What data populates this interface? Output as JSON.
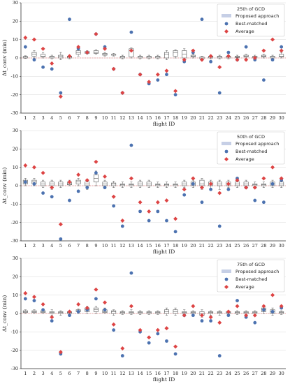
{
  "chart_data": [
    {
      "type": "box+scatter",
      "title": "25th of GCD",
      "xlabel": "flight ID",
      "ylabel": "Δt_conv (min)",
      "ylim": [
        -30,
        30
      ],
      "yticks": [
        -30,
        -20,
        -10,
        0,
        10,
        20,
        30
      ],
      "categories": [
        1,
        2,
        3,
        4,
        5,
        6,
        7,
        8,
        9,
        10,
        11,
        12,
        13,
        14,
        15,
        16,
        17,
        18,
        19,
        20,
        21,
        22,
        23,
        24,
        25,
        26,
        27,
        28,
        29,
        30
      ],
      "legend": {
        "placement": "top-right",
        "entries": [
          "Proposed approach",
          "Best-matched",
          "Average"
        ]
      },
      "series": [
        {
          "name": "Proposed approach",
          "kind": "box",
          "boxes": [
            [
              -0.3,
              0,
              0.5,
              0.8,
              1.2
            ],
            [
              0,
              1,
              2,
              3,
              4
            ],
            [
              0,
              0.5,
              1,
              2,
              3
            ],
            [
              -0.5,
              0,
              0.5,
              1,
              1.5
            ],
            [
              -1,
              0,
              1,
              1.5,
              3
            ],
            [
              -0.5,
              0,
              0.5,
              1,
              1.5
            ],
            [
              1,
              2,
              3,
              4,
              5
            ],
            [
              2,
              2.5,
              3,
              3.5,
              4
            ],
            [
              2,
              2.5,
              3,
              4,
              4.5
            ],
            [
              1,
              1.5,
              2,
              2.5,
              3
            ],
            [
              1,
              1.5,
              2,
              2,
              2.5
            ],
            [
              -0.5,
              0,
              0.5,
              1,
              1.5
            ],
            [
              0,
              0.5,
              4,
              5,
              5.5
            ],
            [
              -0.5,
              0,
              0.5,
              1,
              1.5
            ],
            [
              -0.5,
              0,
              0.5,
              1,
              1.5
            ],
            [
              -0.5,
              0,
              0.5,
              1,
              1.5
            ],
            [
              -1,
              0,
              2,
              3,
              4
            ],
            [
              0,
              1,
              3,
              4,
              4.5
            ],
            [
              -1,
              0,
              2,
              4,
              5
            ],
            [
              0,
              0.5,
              1,
              1.5,
              2
            ],
            [
              -1,
              -0.5,
              0,
              0.5,
              1
            ],
            [
              -0.5,
              0,
              0.5,
              1,
              1.5
            ],
            [
              -0.5,
              0,
              0.5,
              1,
              1.5
            ],
            [
              -0.5,
              0,
              0.5,
              1,
              1.5
            ],
            [
              0,
              0.3,
              0.5,
              1,
              1.5
            ],
            [
              0,
              0.5,
              1,
              1.5,
              2
            ],
            [
              -0.5,
              0,
              0.5,
              1,
              1.5
            ],
            [
              0,
              0.5,
              1,
              1.5,
              2
            ],
            [
              -0.5,
              0,
              0.5,
              1,
              1.5
            ],
            [
              0,
              0.5,
              1,
              2,
              3
            ]
          ]
        },
        {
          "name": "Best-matched",
          "kind": "scatter",
          "marker": "circle",
          "color": "#4c72b0",
          "values": [
            6,
            -1,
            -5,
            -6,
            -19,
            21,
            5,
            3,
            13,
            6,
            -6,
            -19,
            14,
            -9,
            -14,
            -12,
            -9,
            -20,
            -2,
            3,
            21,
            -2,
            -19,
            3,
            -1,
            6,
            -1,
            -12,
            -1,
            6
          ]
        },
        {
          "name": "Average",
          "kind": "scatter",
          "marker": "diamond",
          "color": "#dd4444",
          "values": [
            11,
            10,
            5,
            -3,
            -21,
            1,
            6,
            3,
            13,
            5,
            -6,
            -19,
            4,
            -9,
            -13,
            -9,
            -7,
            -18,
            -1,
            4,
            -1,
            1,
            -5,
            1,
            -1,
            -1,
            0,
            4,
            10,
            4
          ]
        }
      ]
    },
    {
      "type": "box+scatter",
      "title": "50th of GCD",
      "xlabel": "flight ID",
      "ylabel": "Δt_conv (min)",
      "ylim": [
        -30,
        30
      ],
      "yticks": [
        -30,
        -20,
        -10,
        0,
        10,
        20,
        30
      ],
      "categories": [
        1,
        2,
        3,
        4,
        5,
        6,
        7,
        8,
        9,
        10,
        11,
        12,
        13,
        14,
        15,
        16,
        17,
        18,
        19,
        20,
        21,
        22,
        23,
        24,
        25,
        26,
        27,
        28,
        29,
        30
      ],
      "legend": {
        "placement": "top-right",
        "entries": [
          "Proposed approach",
          "Best-matched",
          "Average"
        ]
      },
      "series": [
        {
          "name": "Proposed approach",
          "kind": "box",
          "boxes": [
            [
              0,
              1,
              2,
              3,
              4
            ],
            [
              0,
              1,
              2,
              3,
              4
            ],
            [
              -1,
              0,
              1,
              2,
              3
            ],
            [
              -2,
              0,
              1,
              2,
              3
            ],
            [
              -1,
              0,
              1,
              2,
              3
            ],
            [
              0,
              0.5,
              1,
              2,
              3
            ],
            [
              0,
              1,
              2,
              3,
              4
            ],
            [
              -2,
              0,
              1,
              2,
              3
            ],
            [
              0,
              2,
              4,
              6,
              8
            ],
            [
              -1,
              0,
              1,
              2,
              3
            ],
            [
              -1,
              0,
              1,
              1.5,
              2.5
            ],
            [
              -1,
              0,
              0.5,
              1,
              2
            ],
            [
              -1,
              0,
              0.5,
              1,
              2
            ],
            [
              -1,
              0,
              1,
              2,
              3
            ],
            [
              -1,
              0,
              1,
              2,
              3
            ],
            [
              -1,
              0,
              0.5,
              1,
              2
            ],
            [
              -1,
              0,
              0.5,
              1,
              2
            ],
            [
              -1,
              0,
              0.5,
              1,
              2
            ],
            [
              -1,
              0,
              1,
              2,
              3
            ],
            [
              -1,
              0,
              1,
              2,
              3
            ],
            [
              -2,
              0,
              1,
              3,
              4
            ],
            [
              -2,
              0,
              1,
              2,
              3
            ],
            [
              -2,
              0,
              1,
              2,
              3
            ],
            [
              -1,
              0,
              1,
              2,
              3
            ],
            [
              -1,
              0,
              1,
              2,
              3
            ],
            [
              -1,
              0,
              1,
              2,
              3
            ],
            [
              -1,
              0,
              0.5,
              1,
              2
            ],
            [
              -1,
              0,
              0.5,
              1,
              2
            ],
            [
              -1,
              0,
              1,
              2,
              3
            ],
            [
              -1,
              0,
              1,
              2,
              3
            ]
          ]
        },
        {
          "name": "Best-matched",
          "kind": "scatter",
          "marker": "circle",
          "color": "#4c72b0",
          "values": [
            2,
            1,
            -4,
            -6,
            -29,
            -8,
            -3,
            -1,
            7,
            -1,
            -11,
            -22,
            22,
            -14,
            -19,
            -14,
            -19,
            -25,
            -5,
            1,
            -9,
            -2,
            -22,
            -2,
            4,
            -1,
            -8,
            -9,
            1,
            3
          ]
        },
        {
          "name": "Average",
          "kind": "scatter",
          "marker": "diamond",
          "color": "#dd4444",
          "values": [
            11,
            10,
            7,
            -1,
            -21,
            2,
            6,
            3,
            13,
            5,
            -6,
            -19,
            4,
            -9,
            -14,
            -9,
            -8,
            -18,
            -2,
            4,
            -1,
            1,
            -4,
            1,
            3,
            -1,
            -1,
            4,
            10,
            4
          ]
        }
      ]
    },
    {
      "type": "box+scatter",
      "title": "75th of GCD",
      "xlabel": "flight ID",
      "ylabel": "Δt_conv (min)",
      "ylim": [
        -30,
        30
      ],
      "yticks": [
        -30,
        -20,
        -10,
        0,
        10,
        20,
        30
      ],
      "categories": [
        1,
        2,
        3,
        4,
        5,
        6,
        7,
        8,
        9,
        10,
        11,
        12,
        13,
        14,
        15,
        16,
        17,
        18,
        19,
        20,
        21,
        22,
        23,
        24,
        25,
        26,
        27,
        28,
        29,
        30
      ],
      "legend": {
        "placement": "top-right",
        "entries": [
          "Proposed approach",
          "Best-matched",
          "Average"
        ]
      },
      "series": [
        {
          "name": "Proposed approach",
          "kind": "box",
          "boxes": [
            [
              0,
              0.5,
              1,
              1.5,
              2
            ],
            [
              0,
              0.5,
              1,
              1.5,
              2
            ],
            [
              0,
              0.5,
              1,
              1.5,
              2
            ],
            [
              -1,
              0,
              0.5,
              1,
              2
            ],
            [
              -1,
              0,
              0.5,
              1,
              1.5
            ],
            [
              -0.5,
              0,
              0.5,
              1,
              1.5
            ],
            [
              0,
              1,
              1.5,
              2,
              2.5
            ],
            [
              0,
              1,
              2,
              3,
              4
            ],
            [
              0,
              1,
              2,
              3,
              4
            ],
            [
              0,
              0.5,
              1,
              2,
              3
            ],
            [
              -1,
              0,
              1,
              1.5,
              2
            ],
            [
              -0.5,
              0,
              0.5,
              1,
              1.5
            ],
            [
              -0.5,
              0,
              0.5,
              1,
              2
            ],
            [
              -0.5,
              0,
              0.5,
              1,
              1.5
            ],
            [
              -0.5,
              0,
              0.5,
              1,
              1.5
            ],
            [
              -0.5,
              0,
              0.5,
              1,
              1.5
            ],
            [
              -1,
              0,
              1,
              2,
              3
            ],
            [
              -1,
              0,
              1,
              2,
              3
            ],
            [
              -1,
              0,
              0.5,
              1,
              2
            ],
            [
              -1,
              0,
              0.5,
              1,
              1.5
            ],
            [
              -2,
              -1,
              0,
              1,
              2
            ],
            [
              -1,
              0,
              0.5,
              1,
              1.5
            ],
            [
              -1,
              0,
              0.5,
              1,
              1.5
            ],
            [
              -1,
              0,
              0.5,
              1,
              1.5
            ],
            [
              -0.5,
              0,
              0.5,
              1,
              1.5
            ],
            [
              -1,
              0,
              0.5,
              1,
              1.5
            ],
            [
              -1,
              0,
              0.5,
              1,
              1.5
            ],
            [
              0,
              1,
              2,
              3,
              4
            ],
            [
              -1,
              0,
              1,
              2,
              3
            ],
            [
              -0.5,
              0,
              0.5,
              1,
              1.5
            ]
          ]
        },
        {
          "name": "Best-matched",
          "kind": "scatter",
          "marker": "circle",
          "color": "#4c72b0",
          "values": [
            8,
            7,
            2,
            -4,
            -22,
            -1,
            1,
            2,
            8,
            2,
            -9,
            -23,
            22,
            -10,
            -16,
            -11,
            -15,
            -22,
            -1,
            -1,
            -4,
            -4,
            -23,
            -1,
            7,
            -2,
            -5,
            2,
            1,
            3
          ]
        },
        {
          "name": "Average",
          "kind": "scatter",
          "marker": "diamond",
          "color": "#dd4444",
          "values": [
            11,
            9,
            5,
            -2,
            -21,
            1,
            5,
            3,
            13,
            6,
            -6,
            -19,
            4,
            -9,
            -13,
            -9,
            -8,
            -18,
            -1,
            4,
            -1,
            -2,
            -5,
            1,
            4,
            -1,
            -1,
            4,
            10,
            4
          ]
        }
      ]
    }
  ],
  "colors": {
    "box_fill": "#c6cfe6",
    "box_edge": "#555555",
    "best": "#4c72b0",
    "avg": "#dd4444",
    "zero_line": "#e88888",
    "grid": "#d8d8d8"
  }
}
